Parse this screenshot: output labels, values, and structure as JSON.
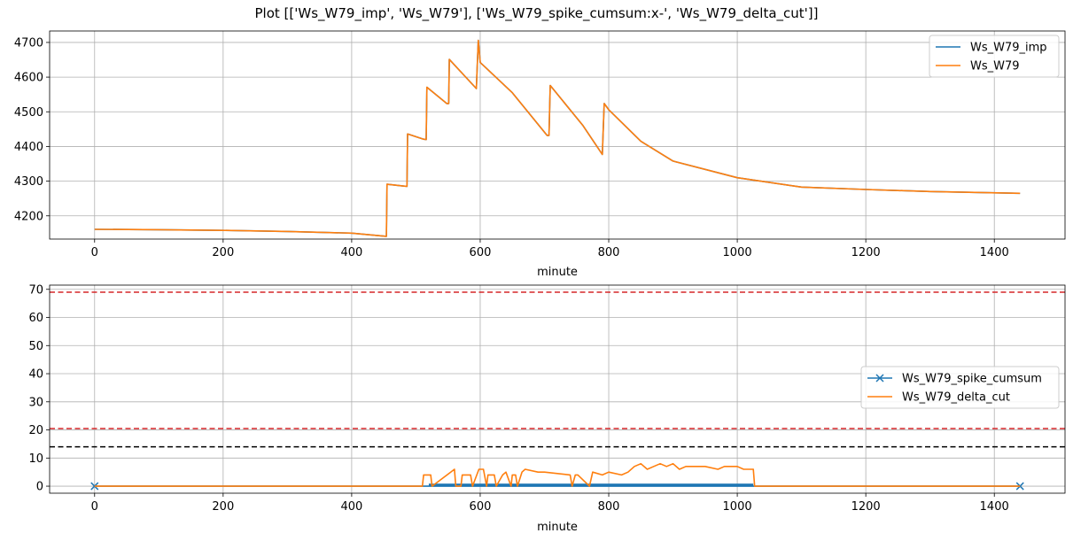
{
  "title": "Plot [['Ws_W79_imp', 'Ws_W79'], ['Ws_W79_spike_cumsum:x-', 'Ws_W79_delta_cut']]",
  "colors": {
    "blue": "#1f77b4",
    "orange": "#ff7f0e",
    "red": "#d62728",
    "black": "#000000",
    "grid": "#b0b0b0"
  },
  "chart_data": [
    {
      "type": "line",
      "xlabel": "minute",
      "ylabel": "",
      "xlim": [
        -70,
        1510
      ],
      "ylim": [
        4133,
        4733
      ],
      "xticks": [
        0,
        200,
        400,
        600,
        800,
        1000,
        1200,
        1400
      ],
      "yticks": [
        4200,
        4300,
        4400,
        4500,
        4600,
        4700
      ],
      "grid": true,
      "legend_position": "top-right",
      "series": [
        {
          "name": "Ws_W79_imp",
          "color": "#1f77b4",
          "x": [
            0,
            100,
            200,
            300,
            400,
            454,
            455,
            480,
            486,
            487,
            512,
            516,
            517,
            548,
            551,
            552,
            594,
            597,
            600,
            650,
            704,
            707,
            709,
            760,
            790,
            793,
            800,
            850,
            900,
            1000,
            1100,
            1200,
            1300,
            1440
          ],
          "y": [
            4161,
            4160,
            4158,
            4155,
            4150,
            4141,
            4291,
            4286,
            4285,
            4436,
            4421,
            4420,
            4571,
            4524,
            4524,
            4651,
            4567,
            4706,
            4642,
            4555,
            4432,
            4432,
            4576,
            4460,
            4377,
            4524,
            4506,
            4415,
            4358,
            4310,
            4283,
            4276,
            4270,
            4265
          ]
        },
        {
          "name": "Ws_W79",
          "color": "#ff7f0e",
          "x": [
            0,
            100,
            200,
            300,
            400,
            454,
            455,
            480,
            486,
            487,
            512,
            516,
            517,
            548,
            551,
            552,
            594,
            597,
            600,
            650,
            704,
            707,
            709,
            760,
            790,
            793,
            800,
            850,
            900,
            1000,
            1100,
            1200,
            1300,
            1440
          ],
          "y": [
            4161,
            4160,
            4158,
            4155,
            4150,
            4141,
            4291,
            4286,
            4285,
            4436,
            4421,
            4420,
            4571,
            4524,
            4524,
            4651,
            4567,
            4706,
            4642,
            4555,
            4432,
            4432,
            4576,
            4460,
            4377,
            4524,
            4506,
            4415,
            4358,
            4310,
            4283,
            4276,
            4270,
            4265
          ]
        }
      ]
    },
    {
      "type": "line",
      "xlabel": "minute",
      "ylabel": "",
      "xlim": [
        -70,
        1510
      ],
      "ylim": [
        -2.5,
        71.5
      ],
      "xticks": [
        0,
        200,
        400,
        600,
        800,
        1000,
        1200,
        1400
      ],
      "yticks": [
        0,
        10,
        20,
        30,
        40,
        50,
        60,
        70
      ],
      "grid": true,
      "legend_position": "center-right",
      "series": [
        {
          "name": "Ws_W79_spike_cumsum",
          "color": "#1f77b4",
          "marker": "x",
          "x": [
            0,
            520,
            1025,
            1440
          ],
          "y": [
            0,
            0,
            0,
            0
          ],
          "band": {
            "x_start": 520,
            "x_end": 1025,
            "y_low": 0,
            "y_high": 0.9
          }
        },
        {
          "name": "Ws_W79_delta_cut",
          "color": "#ff7f0e",
          "x": [
            0,
            510,
            512,
            523,
            525,
            560,
            562,
            570,
            572,
            585,
            588,
            598,
            605,
            610,
            612,
            622,
            625,
            635,
            640,
            648,
            650,
            655,
            658,
            665,
            670,
            690,
            700,
            740,
            743,
            748,
            752,
            770,
            775,
            790,
            800,
            820,
            830,
            840,
            850,
            860,
            870,
            880,
            890,
            900,
            910,
            920,
            950,
            970,
            980,
            1000,
            1010,
            1025,
            1027,
            1440
          ],
          "y": [
            0,
            0,
            4,
            4,
            0,
            6,
            0,
            0,
            4,
            4,
            0,
            6,
            6,
            0,
            4,
            4,
            0,
            4,
            5,
            0,
            4,
            4,
            0,
            5,
            6,
            5,
            5,
            4,
            0,
            4,
            4,
            0,
            5,
            4,
            5,
            4,
            5,
            7,
            8,
            6,
            7,
            8,
            7,
            8,
            6,
            7,
            7,
            6,
            7,
            7,
            6,
            6,
            0,
            0
          ]
        }
      ],
      "hlines": [
        {
          "y": 69,
          "color": "#d62728",
          "style": "dashed"
        },
        {
          "y": 20.5,
          "color": "#d62728",
          "style": "dashed"
        },
        {
          "y": 14,
          "color": "#000000",
          "style": "dashed"
        }
      ]
    }
  ]
}
